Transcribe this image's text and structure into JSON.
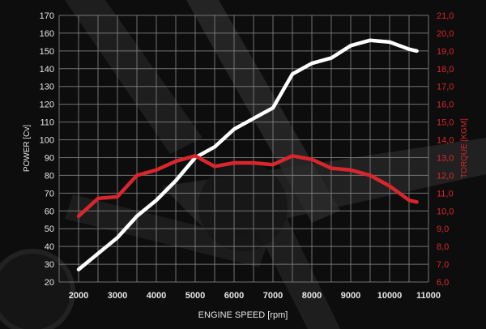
{
  "chart_data": {
    "type": "line",
    "title": "",
    "xlabel": "ENGINE SPEED [rpm]",
    "ylabel": "POWER [Cv]",
    "y2label": "TORQUE [KGM]",
    "xlim": [
      1500,
      11000
    ],
    "ylim": [
      20,
      170
    ],
    "y2lim": [
      6.0,
      21.0
    ],
    "grid": true,
    "x_ticks": [
      "2000",
      "3000",
      "4000",
      "5000",
      "6000",
      "7000",
      "8000",
      "9000",
      "10000",
      "11000"
    ],
    "y_ticks": [
      "20",
      "30",
      "40",
      "50",
      "60",
      "70",
      "80",
      "90",
      "100",
      "110",
      "120",
      "130",
      "140",
      "150",
      "160",
      "170"
    ],
    "y2_ticks": [
      "6,0",
      "7,0",
      "8,0",
      "9,0",
      "10,0",
      "11,0",
      "12,0",
      "13,0",
      "14,0",
      "15,0",
      "16,0",
      "17,0",
      "18,0",
      "19,0",
      "20,0",
      "21,0"
    ],
    "series": [
      {
        "name": "POWER [Cv]",
        "axis": "left",
        "color": "#ffffff",
        "x": [
          2000,
          2500,
          3000,
          3500,
          4000,
          4500,
          5000,
          5500,
          6000,
          6500,
          7000,
          7500,
          8000,
          8500,
          9000,
          9500,
          10000,
          10500,
          10700
        ],
        "y": [
          27,
          36,
          45,
          57,
          66,
          77,
          90,
          96,
          106,
          112,
          118,
          137,
          143,
          146,
          153,
          156,
          155,
          151,
          150
        ]
      },
      {
        "name": "TORQUE [KGM]",
        "axis": "right",
        "color": "#d8262c",
        "x": [
          2000,
          2500,
          3000,
          3500,
          4000,
          4500,
          5000,
          5500,
          6000,
          6500,
          7000,
          7500,
          8000,
          8500,
          9000,
          9500,
          10000,
          10500,
          10700
        ],
        "y": [
          9.7,
          10.7,
          10.8,
          12.0,
          12.3,
          12.8,
          13.1,
          12.5,
          12.7,
          12.7,
          12.6,
          13.1,
          12.9,
          12.4,
          12.3,
          12.0,
          11.4,
          10.6,
          10.5
        ]
      }
    ],
    "colors": {
      "background": "#0d0d0d",
      "grid": "#8a8a8a",
      "axis_text": "#e6e6e6",
      "torque_text": "#d8262c"
    }
  }
}
